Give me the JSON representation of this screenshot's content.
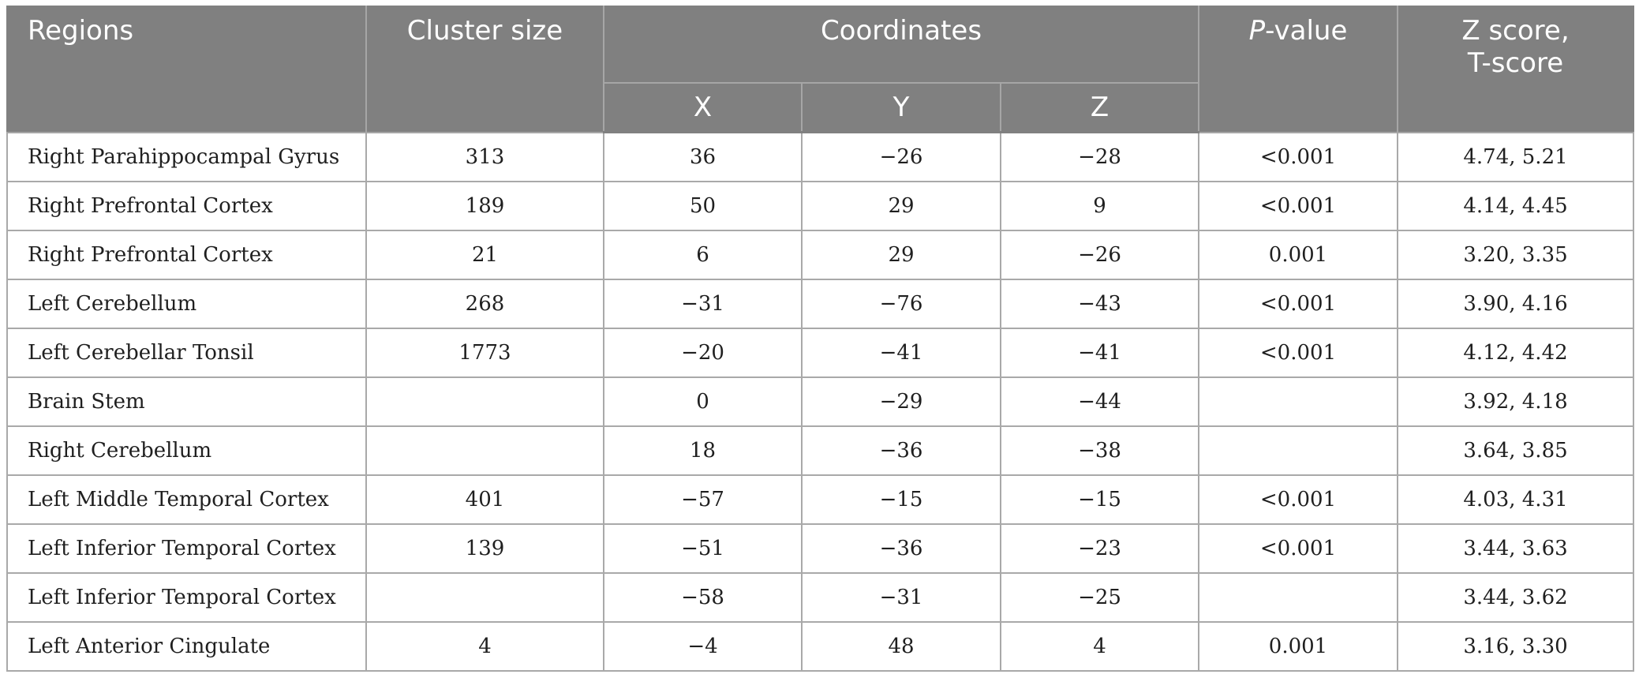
{
  "header": {
    "regions": "Regions",
    "cluster_size": "Cluster size",
    "coordinates": "Coordinates",
    "x": "X",
    "y": "Y",
    "z": "Z",
    "p_value_letter": "P",
    "p_value_rest": "-value",
    "z_score_line1": "Z score,",
    "z_score_line2": "T-score"
  },
  "rows": [
    {
      "region": "Right Parahippocampal Gyrus",
      "cluster": "313",
      "x": "36",
      "y": "−26",
      "z": "−28",
      "p": "<0.001",
      "zt": "4.74, 5.21"
    },
    {
      "region": "Right Prefrontal Cortex",
      "cluster": "189",
      "x": "50",
      "y": "29",
      "z": "9",
      "p": "<0.001",
      "zt": "4.14, 4.45"
    },
    {
      "region": "Right Prefrontal Cortex",
      "cluster": "21",
      "x": "6",
      "y": "29",
      "z": "−26",
      "p": "0.001",
      "zt": "3.20, 3.35"
    },
    {
      "region": "Left Cerebellum",
      "cluster": "268",
      "x": "−31",
      "y": "−76",
      "z": "−43",
      "p": "<0.001",
      "zt": "3.90, 4.16"
    },
    {
      "region": "Left Cerebellar Tonsil",
      "cluster": "1773",
      "x": "−20",
      "y": "−41",
      "z": "−41",
      "p": "<0.001",
      "zt": "4.12, 4.42"
    },
    {
      "region": "Brain Stem",
      "cluster": "",
      "x": "0",
      "y": "−29",
      "z": "−44",
      "p": "",
      "zt": "3.92, 4.18"
    },
    {
      "region": "Right Cerebellum",
      "cluster": "",
      "x": "18",
      "y": "−36",
      "z": "−38",
      "p": "",
      "zt": "3.64, 3.85"
    },
    {
      "region": "Left Middle Temporal Cortex",
      "cluster": "401",
      "x": "−57",
      "y": "−15",
      "z": "−15",
      "p": "<0.001",
      "zt": "4.03, 4.31"
    },
    {
      "region": "Left Inferior Temporal Cortex",
      "cluster": "139",
      "x": "−51",
      "y": "−36",
      "z": "−23",
      "p": "<0.001",
      "zt": "3.44, 3.63"
    },
    {
      "region": "Left Inferior Temporal Cortex",
      "cluster": "",
      "x": "−58",
      "y": "−31",
      "z": "−25",
      "p": "",
      "zt": "3.44, 3.62"
    },
    {
      "region": "Left Anterior Cingulate",
      "cluster": "4",
      "x": "−4",
      "y": "48",
      "z": "4",
      "p": "0.001",
      "zt": "3.16, 3.30"
    }
  ]
}
